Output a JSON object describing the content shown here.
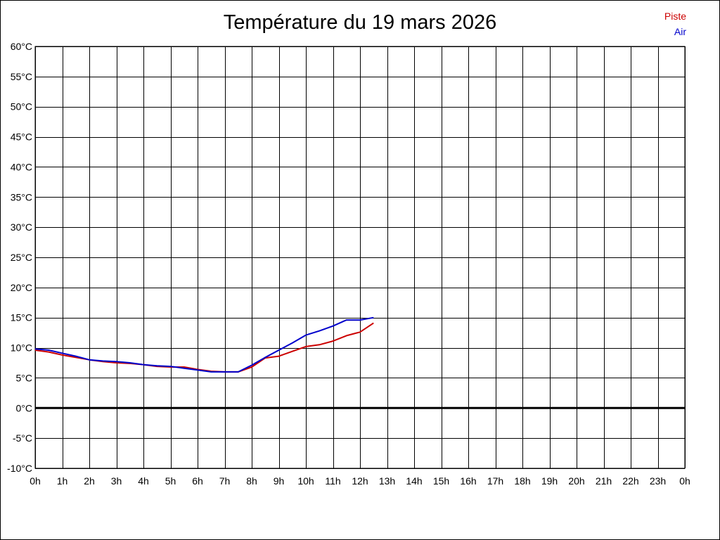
{
  "chart_data": {
    "type": "line",
    "title": "Température du 19 mars 2026",
    "xlabel": "",
    "ylabel": "",
    "x_ticks": [
      "0h",
      "1h",
      "2h",
      "3h",
      "4h",
      "5h",
      "6h",
      "7h",
      "8h",
      "9h",
      "10h",
      "11h",
      "12h",
      "13h",
      "14h",
      "15h",
      "16h",
      "17h",
      "18h",
      "19h",
      "20h",
      "21h",
      "22h",
      "23h",
      "0h"
    ],
    "y_ticks": [
      "60°C",
      "55°C",
      "50°C",
      "45°C",
      "40°C",
      "35°C",
      "30°C",
      "25°C",
      "20°C",
      "15°C",
      "10°C",
      "5°C",
      "0°C",
      "-5°C",
      "-10°C"
    ],
    "xlim": [
      0,
      24
    ],
    "ylim": [
      -10,
      60
    ],
    "grid": true,
    "legend_position": "top-right",
    "colors": {
      "Piste": "#cc0000",
      "Air": "#0000cc",
      "zero_line": "#000000"
    },
    "x": [
      0,
      0.5,
      1,
      1.5,
      2,
      2.5,
      3,
      3.5,
      4,
      4.5,
      5,
      5.5,
      6,
      6.5,
      7,
      7.5,
      8,
      8.5,
      9,
      9.5,
      10,
      10.5,
      11,
      11.5,
      12,
      12.5
    ],
    "series": [
      {
        "name": "Piste",
        "values": [
          9.6,
          9.3,
          8.8,
          8.4,
          8.0,
          7.7,
          7.5,
          7.4,
          7.2,
          6.9,
          6.8,
          6.8,
          6.4,
          6.1,
          6.0,
          6.0,
          6.8,
          8.3,
          8.6,
          9.4,
          10.2,
          10.5,
          11.1,
          12.0,
          12.6,
          14.1
        ]
      },
      {
        "name": "Air",
        "values": [
          9.8,
          9.6,
          9.1,
          8.6,
          8.0,
          7.8,
          7.7,
          7.5,
          7.2,
          7.0,
          6.9,
          6.6,
          6.3,
          6.0,
          6.0,
          6.0,
          7.1,
          8.4,
          9.6,
          10.8,
          12.1,
          12.8,
          13.6,
          14.6,
          14.6,
          15.0
        ]
      }
    ]
  }
}
